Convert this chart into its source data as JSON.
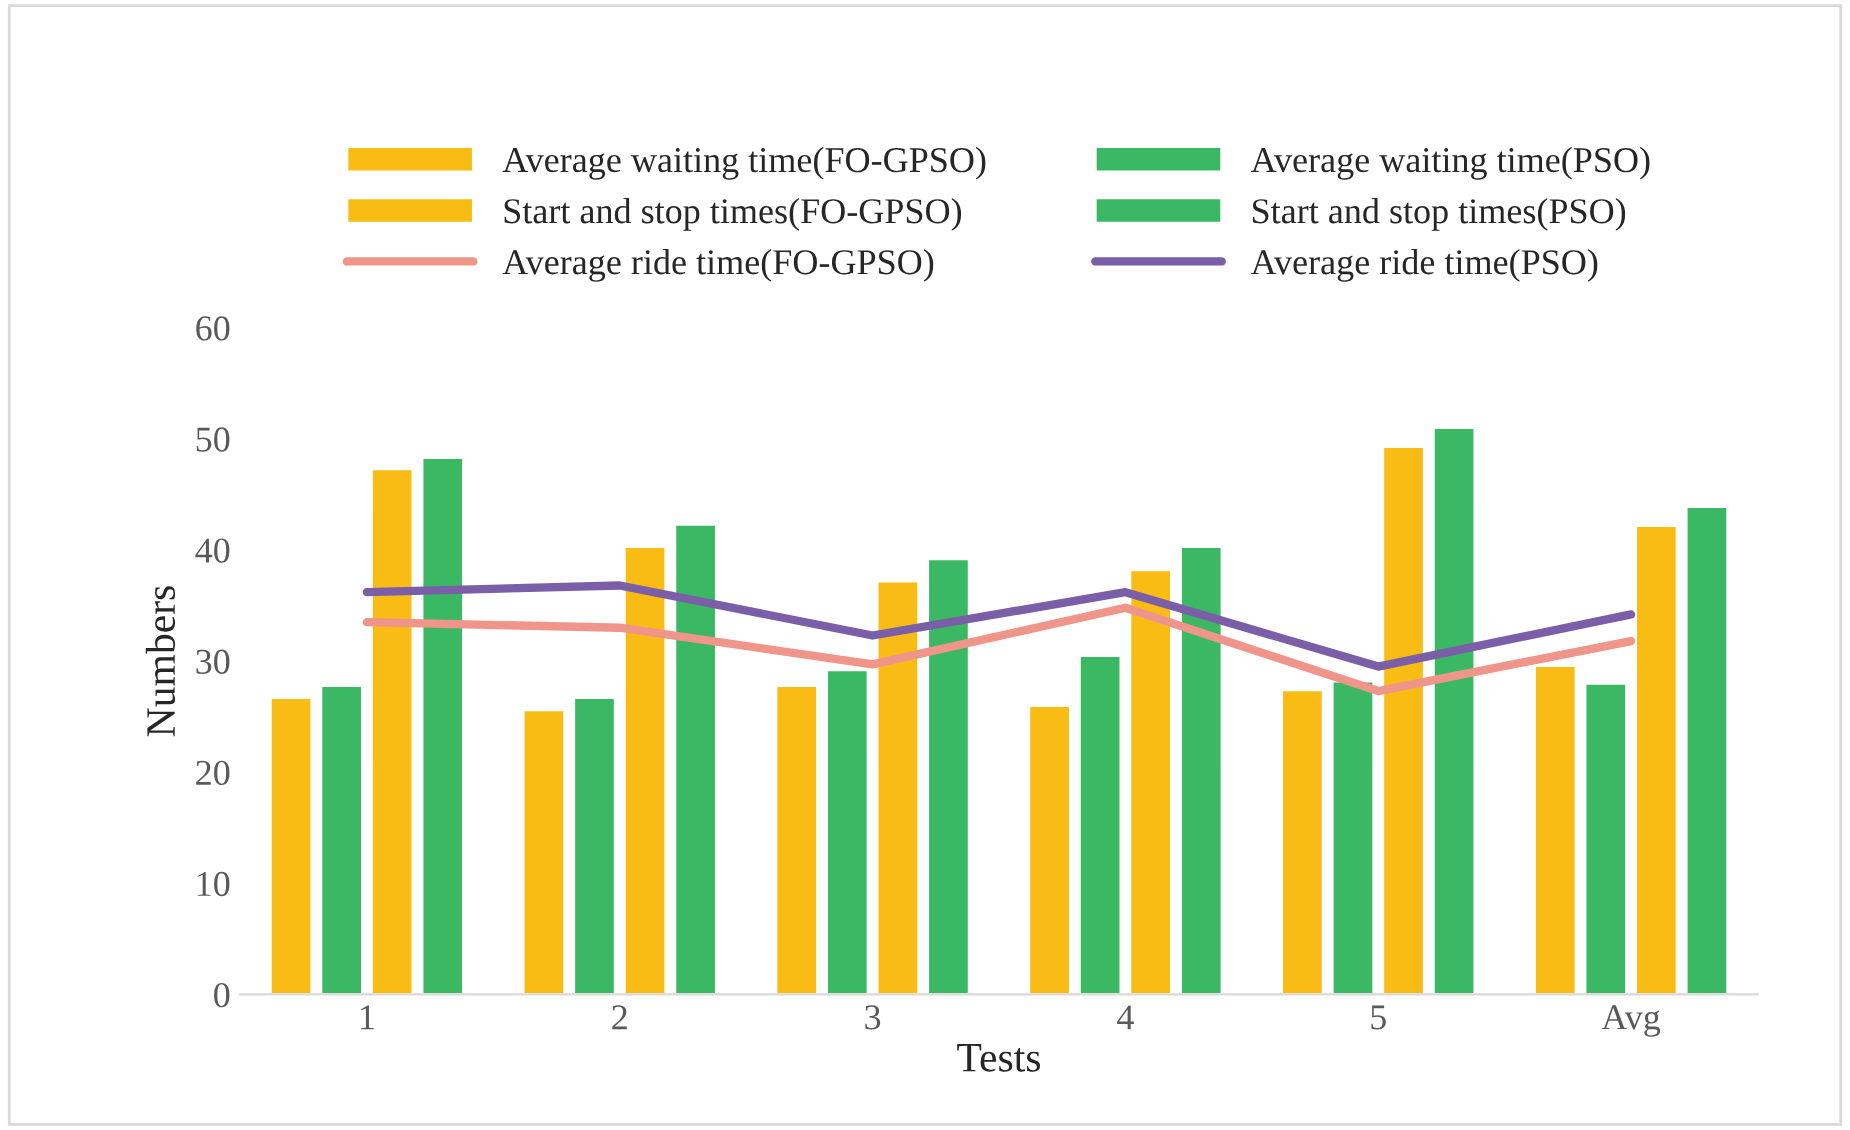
{
  "chart_data": {
    "type": "bar",
    "xlabel": "Tests",
    "ylabel": "Numbers",
    "categories": [
      "1",
      "2",
      "3",
      "4",
      "5",
      "Avg"
    ],
    "series": [
      {
        "name": "Average waiting time(FO-GPSO)",
        "color": "#f9bc15",
        "values": [
          26.7,
          25.6,
          27.8,
          26.0,
          27.4,
          29.6
        ]
      },
      {
        "name": "Average waiting time(PSO)",
        "color": "#3bb864",
        "values": [
          27.8,
          26.7,
          29.2,
          30.5,
          28.2,
          28.0
        ]
      },
      {
        "name": "Start and stop times(FO-GPSO)",
        "color": "#f9bc15",
        "values": [
          47.3,
          40.3,
          37.2,
          38.2,
          49.3,
          42.2
        ]
      },
      {
        "name": "Start and stop times(PSO)",
        "color": "#3bb864",
        "values": [
          48.3,
          42.3,
          39.2,
          40.3,
          51.0,
          43.9
        ]
      },
      {
        "name": "Average ride time(FO-GPSO)",
        "type": "line",
        "color": "#f0958a",
        "values": [
          33.5,
          33.0,
          29.7,
          34.8,
          27.3,
          31.8
        ]
      },
      {
        "name": "Average ride time(PSO)",
        "type": "line",
        "color": "#7a5ea8",
        "values": [
          36.2,
          36.8,
          32.3,
          36.2,
          29.5,
          34.2
        ]
      }
    ],
    "ylim": [
      0,
      60
    ],
    "yticks": [
      0,
      10,
      20,
      30,
      40,
      50,
      60
    ],
    "grid": false,
    "legend": "top",
    "marker": "none",
    "line_style": "solid"
  }
}
